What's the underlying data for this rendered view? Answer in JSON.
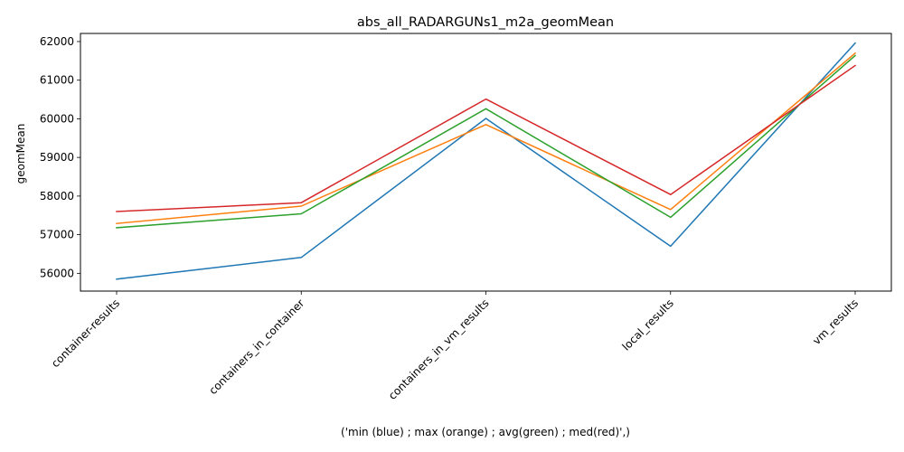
{
  "chart_data": {
    "type": "line",
    "title": "abs_all_RADARGUNs1_m2a_geomMean",
    "xlabel": "('min (blue) ; max (orange) ; avg(green) ; med(red)',)",
    "ylabel": "geomMean",
    "categories": [
      "container-results",
      "containers_in_container",
      "containers_in_vm_results",
      "local_results",
      "vm_results"
    ],
    "ylim": [
      55540,
      62210
    ],
    "yticks": [
      56000,
      57000,
      58000,
      59000,
      60000,
      61000,
      62000
    ],
    "grid": false,
    "legend": "none",
    "series": [
      {
        "color": "#1f77b4",
        "values": [
          55850,
          56410,
          60010,
          56700,
          61960
        ]
      },
      {
        "color": "#ff7f0e",
        "values": [
          57290,
          57740,
          59850,
          57650,
          61700
        ]
      },
      {
        "color": "#2ca02c",
        "values": [
          57180,
          57540,
          60260,
          57450,
          61640
        ]
      },
      {
        "color": "#d62728",
        "values": [
          57600,
          57830,
          60510,
          58040,
          61380
        ]
      }
    ]
  }
}
